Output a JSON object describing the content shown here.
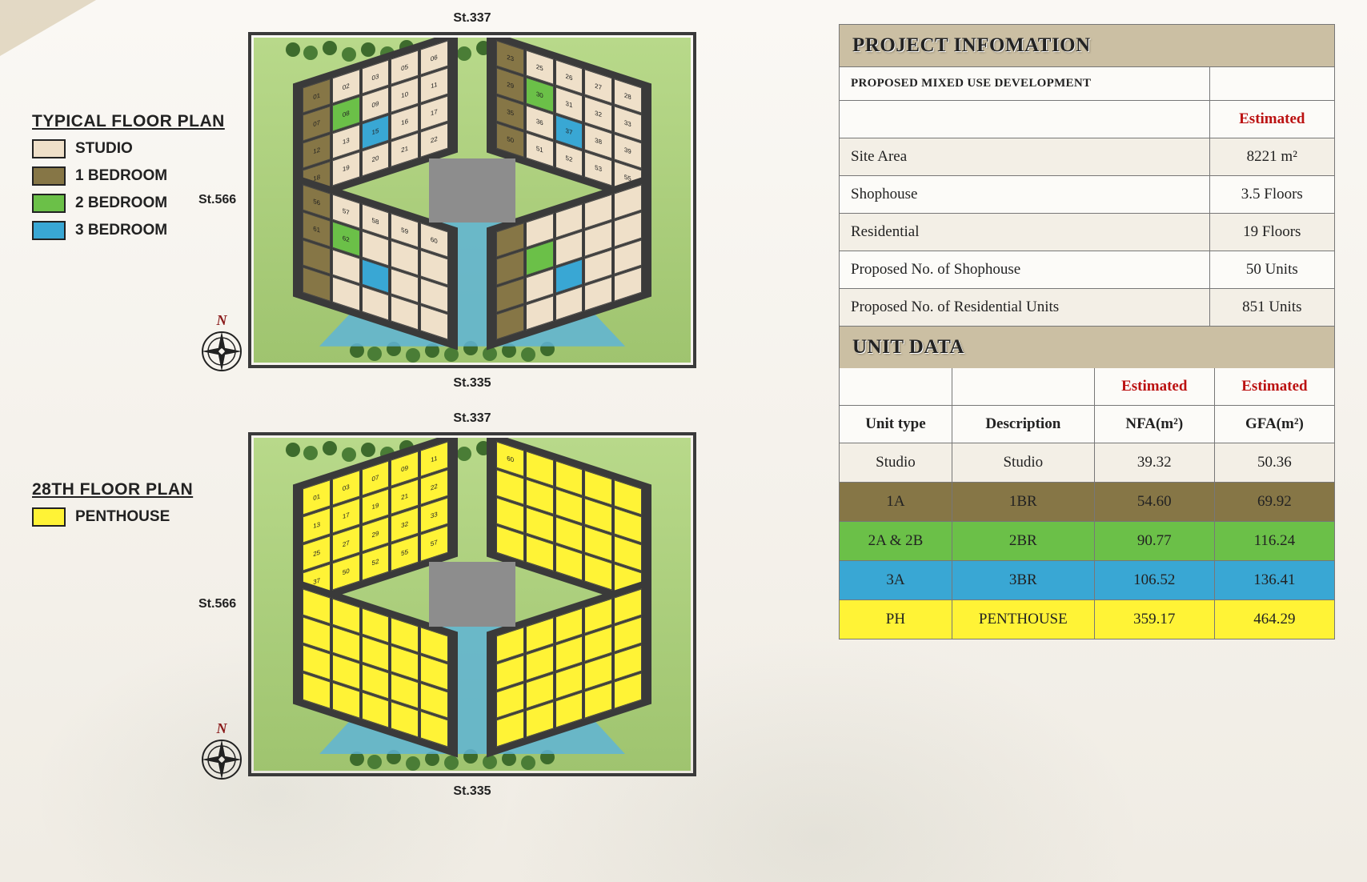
{
  "colors": {
    "studio": "#efe0c9",
    "bed1": "#867646",
    "bed2": "#6bc048",
    "bed3": "#39a7d4",
    "penthouse": "#fff336",
    "header_bar": "#cbbfa3",
    "estimated": "#bb1111"
  },
  "legends": {
    "typical": {
      "title": "TYPICAL FLOOR PLAN",
      "items": [
        {
          "label": "STUDIO",
          "color": "#efe0c9"
        },
        {
          "label": "1 BEDROOM",
          "color": "#867646"
        },
        {
          "label": "2 BEDROOM",
          "color": "#6bc048"
        },
        {
          "label": "3 BEDROOM",
          "color": "#39a7d4"
        }
      ]
    },
    "floor28": {
      "title": "28TH FLOOR PLAN",
      "items": [
        {
          "label": "PENTHOUSE",
          "color": "#fff336"
        }
      ]
    }
  },
  "streets": {
    "top": "St.337",
    "left": "St.566",
    "bottom": "St.335"
  },
  "compass_label": "N",
  "project_info": {
    "title": "PROJECT INFOMATION",
    "subtitle": "PROPOSED MIXED USE DEVELOPMENT",
    "estimated_label": "Estimated",
    "rows": [
      {
        "label": "Site Area",
        "value": "8221 m²"
      },
      {
        "label": "Shophouse",
        "value": "3.5 Floors"
      },
      {
        "label": "Residential",
        "value": "19 Floors"
      },
      {
        "label": "Proposed No. of Shophouse",
        "value": "50 Units"
      },
      {
        "label": "Proposed No. of Residential Units",
        "value": "851 Units"
      }
    ]
  },
  "unit_data": {
    "title": "UNIT DATA",
    "estimated_label": "Estimated",
    "headers": {
      "type": "Unit type",
      "desc": "Description",
      "nfa": "NFA(m²)",
      "gfa": "GFA(m²)"
    },
    "rows": [
      {
        "type": "Studio",
        "desc": "Studio",
        "nfa": "39.32",
        "gfa": "50.36",
        "bg": "#f3efe6"
      },
      {
        "type": "1A",
        "desc": "1BR",
        "nfa": "54.60",
        "gfa": "69.92",
        "bg": "#867646"
      },
      {
        "type": "2A & 2B",
        "desc": "2BR",
        "nfa": "90.77",
        "gfa": "116.24",
        "bg": "#6bc048"
      },
      {
        "type": "3A",
        "desc": "3BR",
        "nfa": "106.52",
        "gfa": "136.41",
        "bg": "#39a7d4"
      },
      {
        "type": "PH",
        "desc": "PENTHOUSE",
        "nfa": "359.17",
        "gfa": "464.29",
        "bg": "#fff336"
      }
    ]
  },
  "typical_units": [
    "01",
    "02",
    "03",
    "05",
    "06",
    "07",
    "08",
    "09",
    "10",
    "11",
    "12",
    "13",
    "15",
    "16",
    "17",
    "18",
    "19",
    "20",
    "21",
    "22",
    "23",
    "25",
    "26",
    "27",
    "28",
    "29",
    "30",
    "31",
    "32",
    "33",
    "35",
    "36",
    "37",
    "38",
    "39",
    "50",
    "51",
    "52",
    "53",
    "55",
    "56",
    "57",
    "58",
    "59",
    "60",
    "61",
    "62"
  ],
  "penthouse_units": [
    "01",
    "03",
    "07",
    "09",
    "11",
    "13",
    "17",
    "19",
    "21",
    "22",
    "25",
    "27",
    "29",
    "32",
    "33",
    "37",
    "50",
    "52",
    "55",
    "57",
    "60"
  ]
}
